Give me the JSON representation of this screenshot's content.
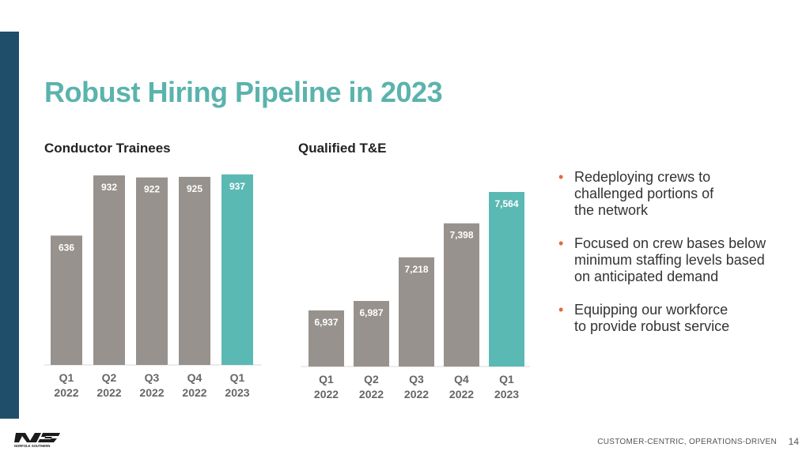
{
  "slide": {
    "title": "Robust Hiring Pipeline in 2023",
    "footer_text": "CUSTOMER-CENTRIC, OPERATIONS-DRIVEN",
    "page_number": "14",
    "logo_text": "NORFOLK SOUTHERN",
    "colors": {
      "bar_gray": "#97928d",
      "bar_teal": "#5bb9b3",
      "title_teal": "#5bb3ad",
      "side_bar": "#1f4e6b",
      "bullet": "#e06a3b"
    }
  },
  "bullets": [
    {
      "text": "Redeploying crews to\nchallenged portions of\nthe network"
    },
    {
      "text": "Focused on crew bases below\nminimum staffing levels based\non anticipated demand"
    },
    {
      "text": "Equipping our workforce\nto provide robust service"
    }
  ],
  "chart_data": [
    {
      "type": "bar",
      "title": "Conductor Trainees",
      "categories": [
        [
          "Q1",
          "2022"
        ],
        [
          "Q2",
          "2022"
        ],
        [
          "Q3",
          "2022"
        ],
        [
          "Q4",
          "2022"
        ],
        [
          "Q1",
          "2023"
        ]
      ],
      "values": [
        636,
        932,
        922,
        925,
        937
      ],
      "labels": [
        "636",
        "932",
        "922",
        "925",
        "937"
      ],
      "highlight_index": 4,
      "ylim": [
        0,
        940
      ],
      "xlabel": "",
      "ylabel": ""
    },
    {
      "type": "bar",
      "title": "Qualified T&E",
      "categories": [
        [
          "Q1",
          "2022"
        ],
        [
          "Q2",
          "2022"
        ],
        [
          "Q3",
          "2022"
        ],
        [
          "Q4",
          "2022"
        ],
        [
          "Q1",
          "2023"
        ]
      ],
      "values": [
        6937,
        6987,
        7218,
        7398,
        7564
      ],
      "labels": [
        "6,937",
        "6,987",
        "7,218",
        "7,398",
        "7,564"
      ],
      "highlight_index": 4,
      "ylim": [
        6640,
        7610
      ],
      "xlabel": "",
      "ylabel": ""
    }
  ]
}
